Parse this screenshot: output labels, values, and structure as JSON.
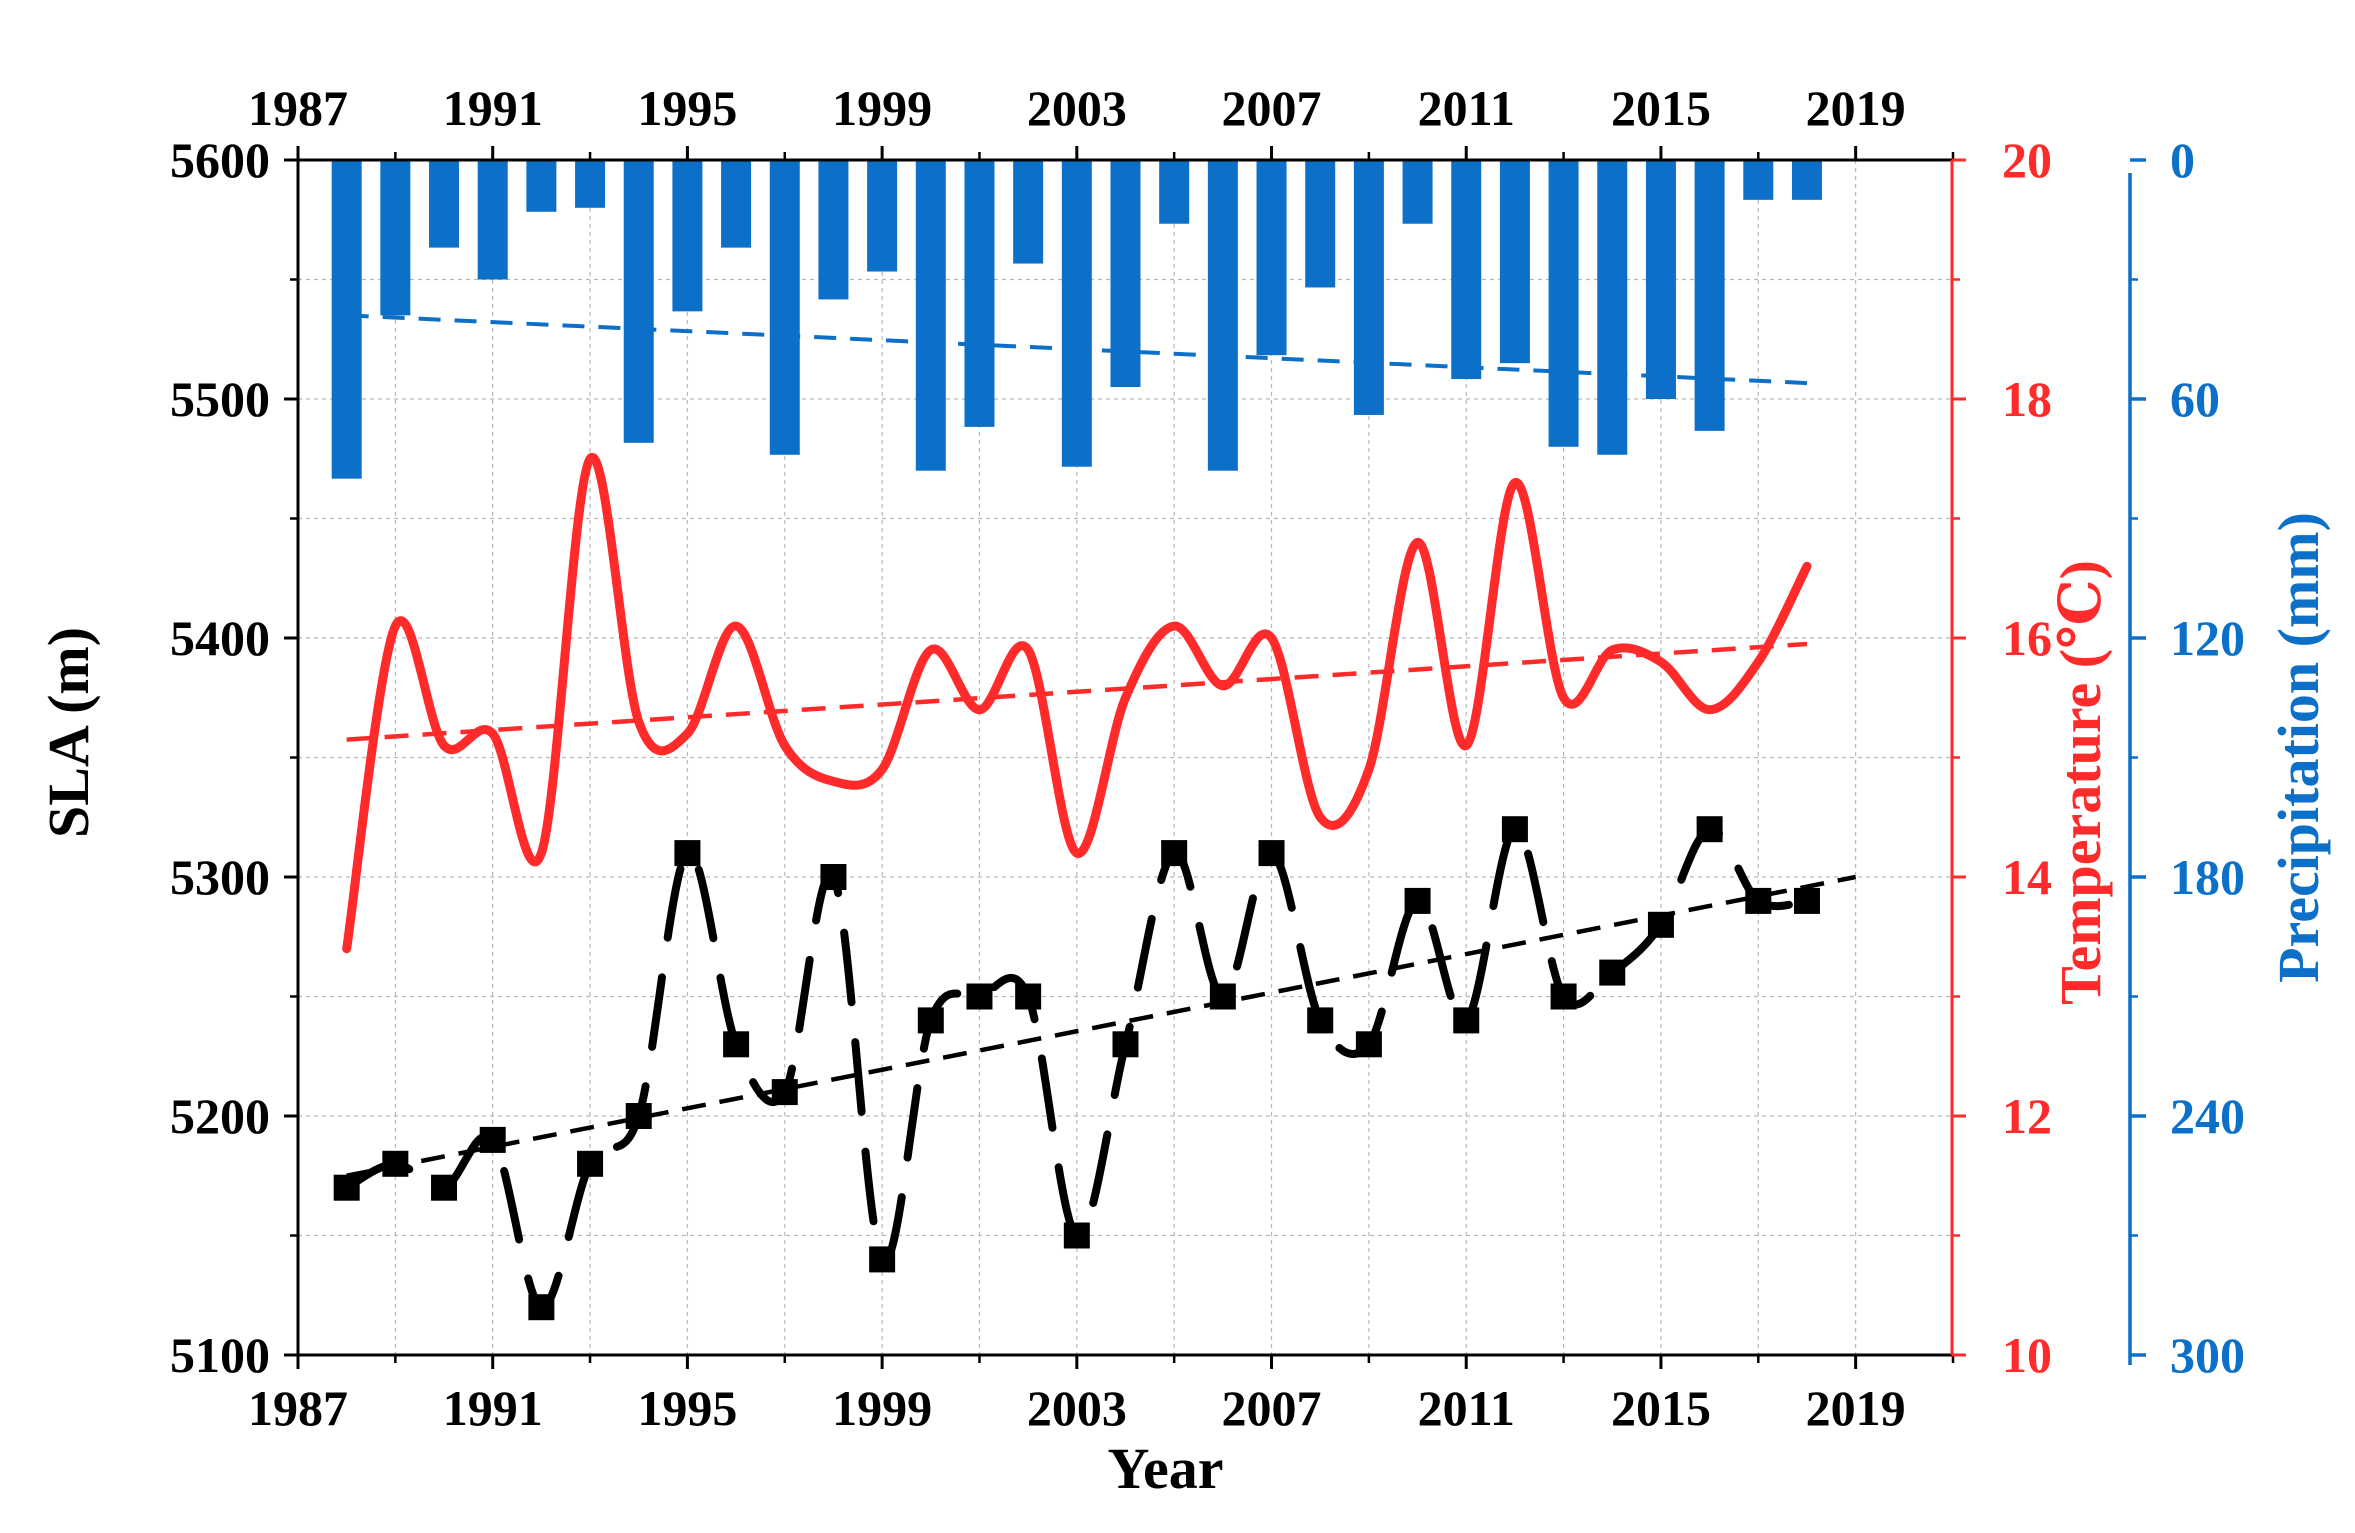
{
  "chart_data": {
    "type": "bar+line",
    "title": "",
    "xlabel": "Year",
    "ylabel": "SLA (m)",
    "y2label": "Temperature (℃)",
    "y3label": "Precipitation (mm)",
    "xlim": [
      1987,
      2021
    ],
    "x_ticks": [
      "1987",
      "1991",
      "1995",
      "1999",
      "2003",
      "2007",
      "2011",
      "2015",
      "2019"
    ],
    "ylim": [
      5100,
      5600
    ],
    "y_ticks": [
      "5100",
      "5200",
      "5300",
      "5400",
      "5500",
      "5600"
    ],
    "y2lim": [
      10,
      20
    ],
    "y2_ticks": [
      "10",
      "12",
      "14",
      "16",
      "18",
      "20"
    ],
    "y3lim": [
      300,
      0
    ],
    "y3_ticks": [
      "0",
      "60",
      "120",
      "180",
      "240",
      "300"
    ],
    "years": [
      1988,
      1989,
      1990,
      1991,
      1992,
      1993,
      1994,
      1995,
      1996,
      1997,
      1998,
      1999,
      2000,
      2001,
      2002,
      2003,
      2004,
      2005,
      2006,
      2007,
      2008,
      2009,
      2010,
      2011,
      2012,
      2013,
      2014,
      2015,
      2016,
      2017,
      2018,
      2019
    ],
    "series": [
      {
        "name": "SLA",
        "type": "line+markers",
        "style": "dashed-thick",
        "color": "#000000",
        "x": [
          1988,
          1989,
          1990,
          1991,
          1992,
          1993,
          1994,
          1995,
          1996,
          1997,
          1998,
          1999,
          2000,
          2001,
          2002,
          2003,
          2004,
          2005,
          2006,
          2007,
          2008,
          2009,
          2010,
          2011,
          2012,
          2013,
          2014,
          2015,
          2016,
          2017,
          2018,
          2019
        ],
        "values": [
          5170,
          5180,
          5170,
          5190,
          5120,
          5180,
          5200,
          5310,
          5230,
          5210,
          5300,
          5140,
          5240,
          5250,
          5250,
          5150,
          5230,
          5310,
          5250,
          5310,
          5240,
          5230,
          5290,
          5240,
          5320,
          5250,
          5260,
          5280,
          5320,
          5290,
          5290,
          null
        ]
      },
      {
        "name": "SLA trend",
        "type": "line",
        "style": "dashed",
        "color": "#000000",
        "x": [
          1988,
          2019
        ],
        "values": [
          5175,
          5300
        ]
      },
      {
        "name": "Temperature",
        "type": "smooth-line",
        "axis": "y2",
        "color": "#ff2a2a",
        "x": [
          1988,
          1989,
          1990,
          1991,
          1992,
          1993,
          1994,
          1995,
          1996,
          1997,
          1998,
          1999,
          2000,
          2001,
          2002,
          2003,
          2004,
          2005,
          2006,
          2007,
          2008,
          2009,
          2010,
          2011,
          2012,
          2013,
          2014,
          2015,
          2016,
          2017,
          2018
        ],
        "values": [
          13.4,
          16.1,
          15.1,
          15.2,
          14.2,
          17.5,
          15.3,
          15.2,
          16.1,
          15.1,
          14.8,
          14.9,
          15.9,
          15.4,
          15.9,
          14.2,
          15.5,
          16.1,
          15.6,
          16.0,
          14.5,
          14.9,
          16.8,
          15.1,
          17.3,
          15.5,
          15.9,
          15.8,
          15.4,
          15.8,
          16.6
        ]
      },
      {
        "name": "Temperature trend",
        "type": "line",
        "axis": "y2",
        "style": "dashed",
        "color": "#ff2a2a",
        "x": [
          1988,
          2018
        ],
        "values": [
          15.15,
          15.95
        ]
      },
      {
        "name": "Precipitation",
        "type": "bar",
        "axis": "y3",
        "color": "#0c6fc8",
        "x": [
          1988,
          1989,
          1990,
          1991,
          1992,
          1993,
          1994,
          1995,
          1996,
          1997,
          1998,
          1999,
          2000,
          2001,
          2002,
          2003,
          2004,
          2005,
          2006,
          2007,
          2008,
          2009,
          2010,
          2011,
          2012,
          2013,
          2014,
          2015,
          2016,
          2017,
          2018
        ],
        "values": [
          80,
          39,
          22,
          30,
          13,
          12,
          71,
          38,
          22,
          74,
          35,
          28,
          78,
          67,
          26,
          77,
          57,
          16,
          78,
          49,
          32,
          64,
          16,
          55,
          51,
          72,
          74,
          60,
          68,
          10,
          10
        ]
      },
      {
        "name": "Precipitation trend",
        "type": "line",
        "axis": "y3",
        "style": "dashed",
        "color": "#0c6fc8",
        "x": [
          1988,
          2018
        ],
        "values": [
          39,
          56
        ]
      }
    ]
  },
  "colors": {
    "sla": "#000000",
    "temperature": "#ff2a2a",
    "precipitation": "#0c6fc8",
    "grid": "#b8b8b8"
  }
}
